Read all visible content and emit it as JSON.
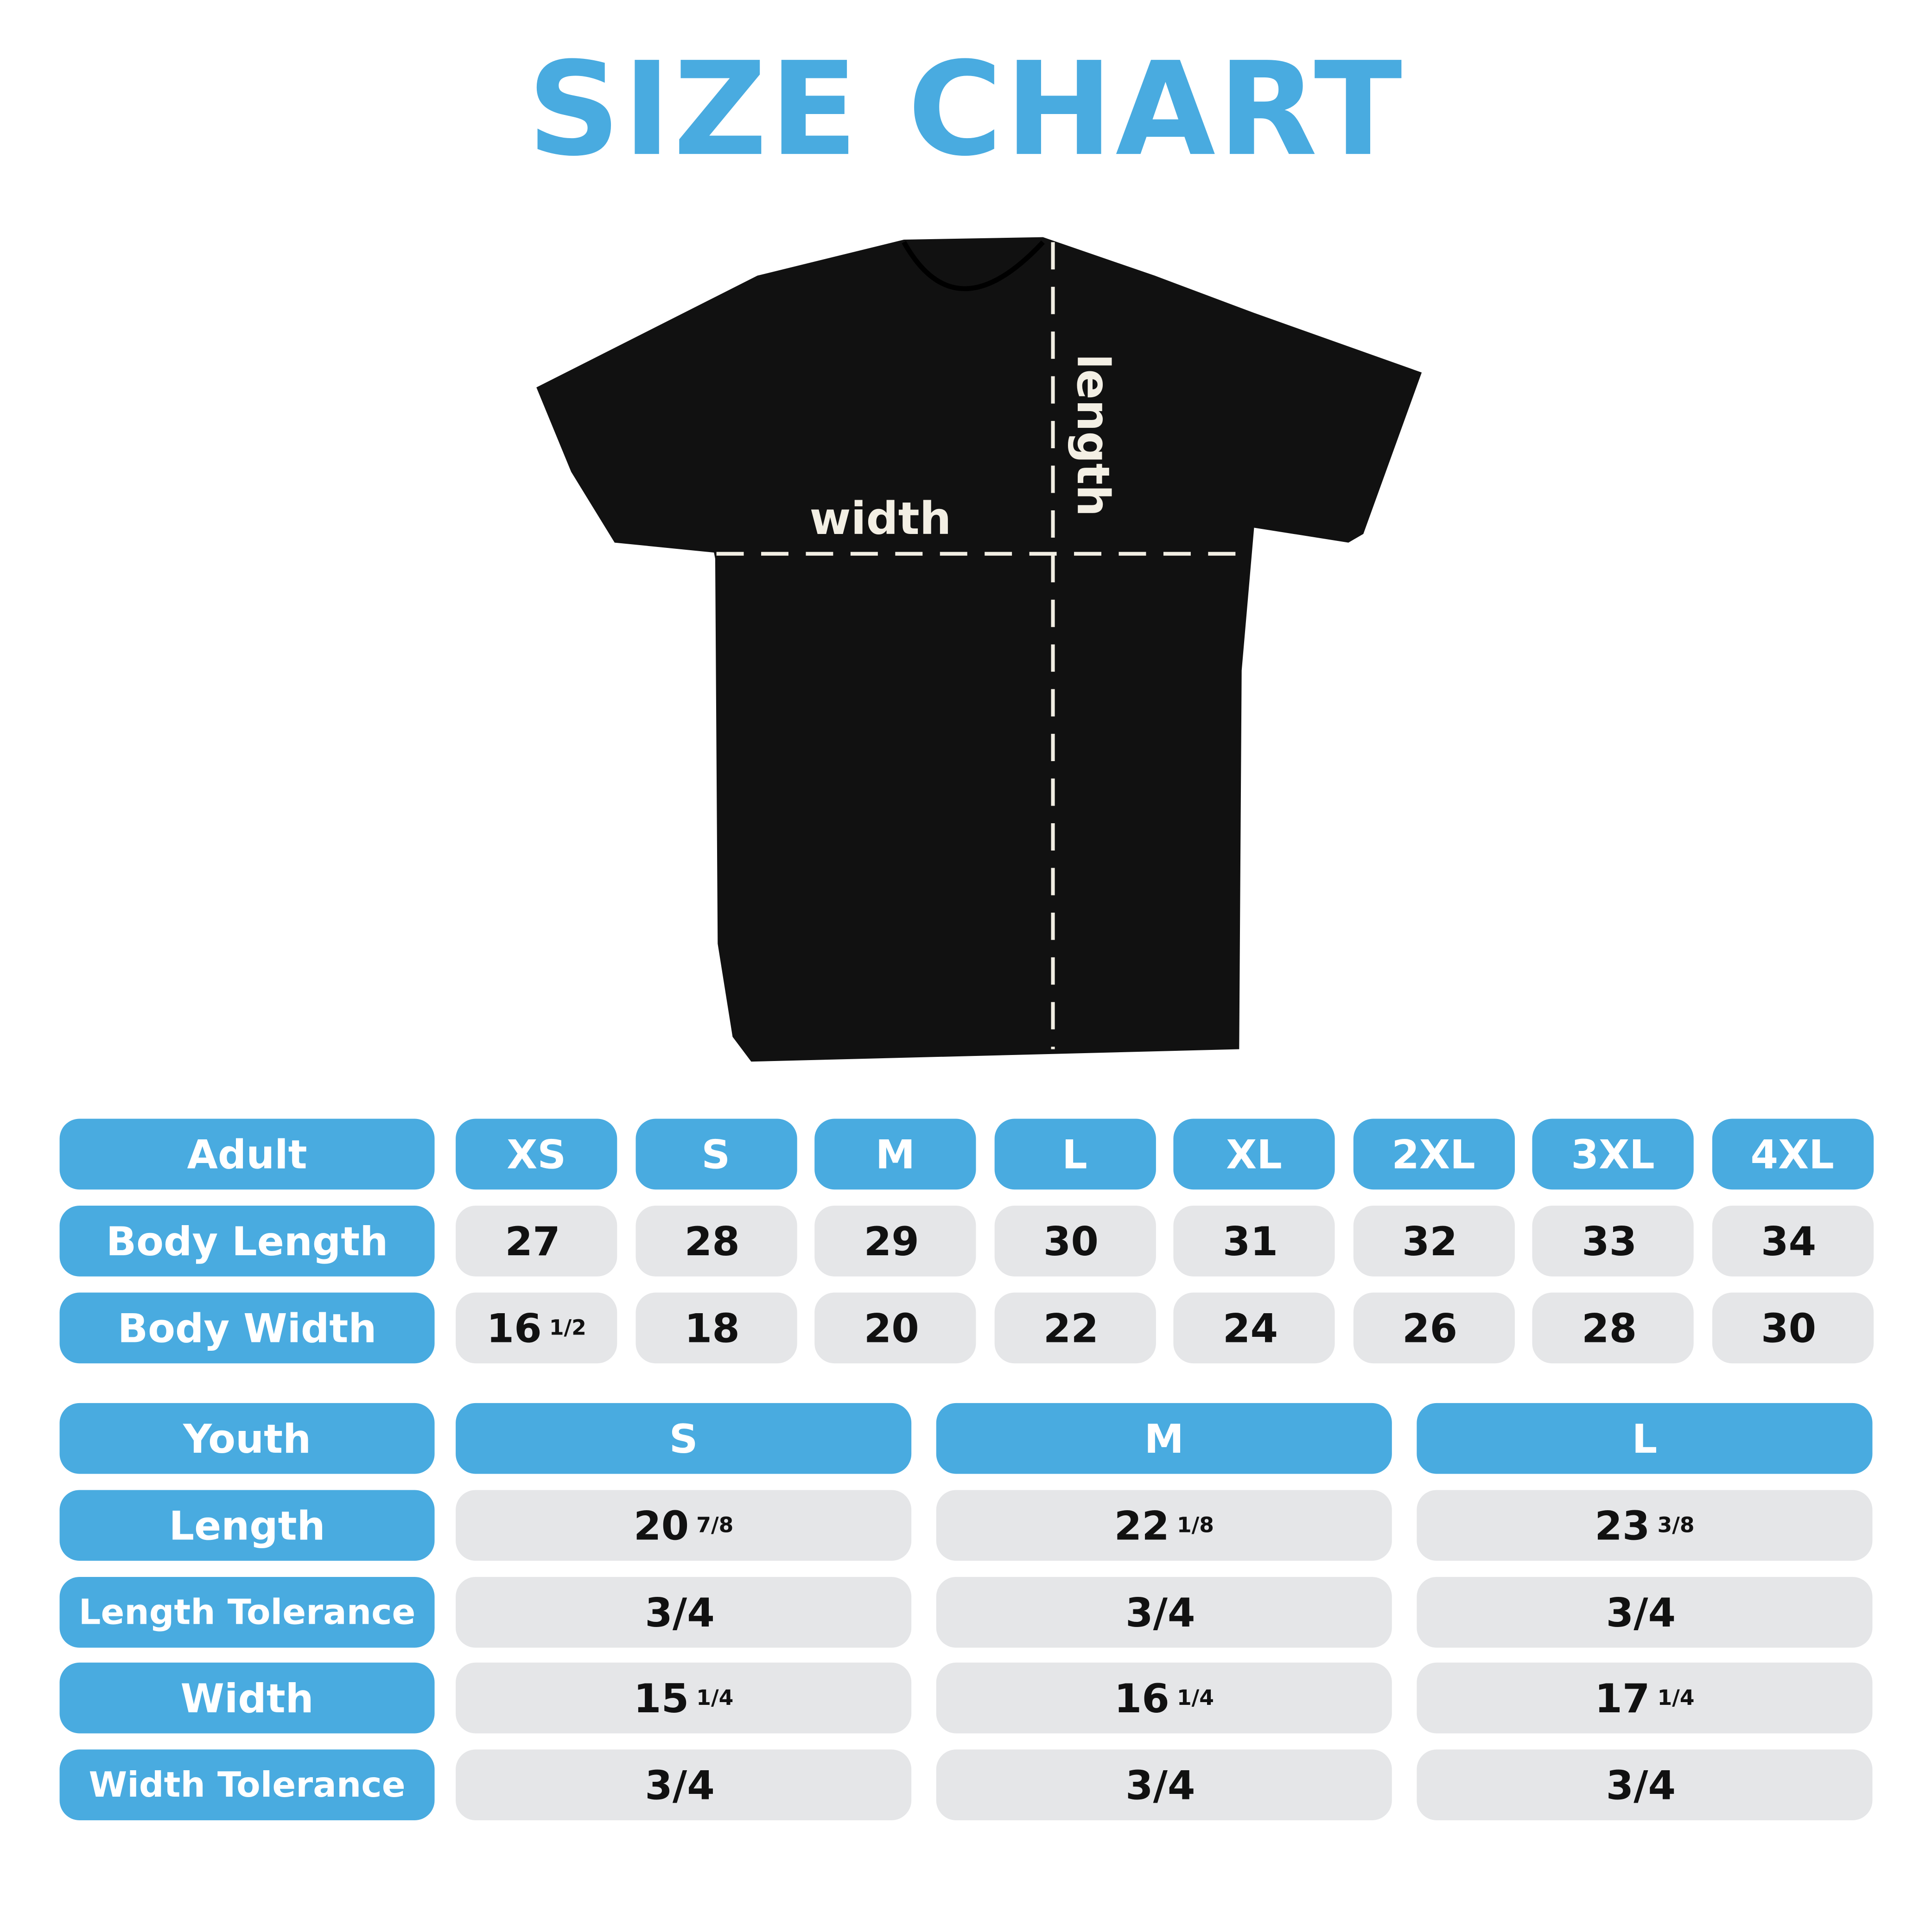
{
  "title": "SIZE CHART",
  "shirt": {
    "width_label": "width",
    "length_label": "length"
  },
  "adult": {
    "header": "Adult",
    "sizes": [
      "XS",
      "S",
      "M",
      "L",
      "XL",
      "2XL",
      "3XL",
      "4XL"
    ],
    "rows": [
      {
        "label": "Body Length",
        "values": [
          {
            "w": "27",
            "f": ""
          },
          {
            "w": "28",
            "f": ""
          },
          {
            "w": "29",
            "f": ""
          },
          {
            "w": "30",
            "f": ""
          },
          {
            "w": "31",
            "f": ""
          },
          {
            "w": "32",
            "f": ""
          },
          {
            "w": "33",
            "f": ""
          },
          {
            "w": "34",
            "f": ""
          }
        ]
      },
      {
        "label": "Body Width",
        "values": [
          {
            "w": "16",
            "f": "1/2"
          },
          {
            "w": "18",
            "f": ""
          },
          {
            "w": "20",
            "f": ""
          },
          {
            "w": "22",
            "f": ""
          },
          {
            "w": "24",
            "f": ""
          },
          {
            "w": "26",
            "f": ""
          },
          {
            "w": "28",
            "f": ""
          },
          {
            "w": "30",
            "f": ""
          }
        ]
      }
    ]
  },
  "youth": {
    "header": "Youth",
    "sizes": [
      "S",
      "M",
      "L"
    ],
    "rows": [
      {
        "label": "Length",
        "values": [
          {
            "w": "20",
            "f": "7/8"
          },
          {
            "w": "22",
            "f": "1/8"
          },
          {
            "w": "23",
            "f": "3/8"
          }
        ]
      },
      {
        "label": "Length Tolerance",
        "values": [
          {
            "w": "3/4",
            "f": ""
          },
          {
            "w": "3/4",
            "f": ""
          },
          {
            "w": "3/4",
            "f": ""
          }
        ]
      },
      {
        "label": "Width",
        "values": [
          {
            "w": "15",
            "f": "1/4"
          },
          {
            "w": "16",
            "f": "1/4"
          },
          {
            "w": "17",
            "f": "1/4"
          }
        ]
      },
      {
        "label": "Width Tolerance",
        "values": [
          {
            "w": "3/4",
            "f": ""
          },
          {
            "w": "3/4",
            "f": ""
          },
          {
            "w": "3/4",
            "f": ""
          }
        ]
      }
    ]
  },
  "colors": {
    "accent": "#49abe0",
    "cell": "#e5e6e8",
    "shirt": "#111111"
  }
}
